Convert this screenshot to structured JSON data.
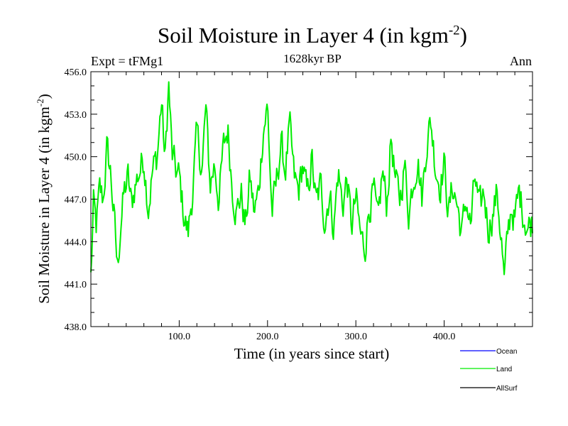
{
  "chart_data": {
    "type": "line",
    "title": "Soil Moisture in Layer 4 (in kgm",
    "title_sup": "-2",
    "title_tail": ")",
    "subtitle": "1628kyr BP",
    "left_label": "Expt = tFMg1",
    "right_label": "Ann",
    "xlabel": "Time (in years since start)",
    "ylabel": "Soil Moisture in Layer 4 (in kgm",
    "ylabel_sup": "-2",
    "ylabel_tail": ")",
    "xlim": [
      0,
      500
    ],
    "ylim": [
      438.0,
      456.0
    ],
    "xticks": [
      100,
      200,
      300,
      400
    ],
    "xtick_labels": [
      "100.0",
      "200.0",
      "300.0",
      "400.0"
    ],
    "yticks": [
      438,
      441,
      444,
      447,
      450,
      453,
      456
    ],
    "ytick_labels": [
      "438.0",
      "441.0",
      "444.0",
      "447.0",
      "450.0",
      "453.0",
      "456.0"
    ],
    "legend": [
      {
        "name": "Ocean",
        "color": "#0000ff"
      },
      {
        "name": "Land",
        "color": "#00ee00"
      },
      {
        "name": "AllSurf",
        "color": "#000000"
      }
    ],
    "series": [
      {
        "name": "Land",
        "color": "#00ee00",
        "keypoints_x": [
          0,
          3,
          6,
          10,
          14,
          18,
          22,
          26,
          30,
          34,
          38,
          42,
          46,
          50,
          55,
          60,
          65,
          70,
          75,
          80,
          84,
          88,
          92,
          96,
          100,
          105,
          110,
          115,
          120,
          126,
          130,
          135,
          140,
          145,
          150,
          155,
          160,
          165,
          170,
          175,
          180,
          185,
          190,
          195,
          200,
          205,
          210,
          215,
          220,
          225,
          230,
          235,
          240,
          245,
          250,
          255,
          260,
          265,
          270,
          275,
          280,
          285,
          290,
          295,
          300,
          305,
          310,
          315,
          320,
          325,
          330,
          335,
          340,
          345,
          350,
          355,
          360,
          365,
          370,
          375,
          380,
          385,
          390,
          395,
          400,
          405,
          410,
          415,
          420,
          425,
          430,
          435,
          440,
          445,
          450,
          455,
          460,
          465,
          468,
          472,
          476,
          480,
          485,
          490,
          495,
          500
        ],
        "keypoints_y": [
          441.5,
          446.5,
          445.0,
          447.5,
          447.0,
          450.5,
          449.0,
          446.0,
          442.0,
          445.5,
          447.5,
          448.5,
          446.5,
          448.0,
          449.0,
          450.0,
          446.5,
          449.0,
          450.0,
          454.0,
          449.5,
          455.2,
          450.0,
          449.0,
          448.5,
          446.0,
          444.5,
          447.5,
          451.5,
          449.0,
          453.5,
          448.0,
          449.5,
          447.0,
          450.5,
          452.0,
          448.0,
          446.0,
          447.5,
          445.0,
          448.5,
          446.0,
          447.5,
          452.0,
          453.5,
          446.0,
          448.0,
          451.0,
          449.0,
          452.0,
          448.5,
          447.5,
          449.5,
          447.0,
          450.0,
          446.5,
          448.0,
          445.5,
          447.5,
          445.0,
          449.0,
          446.5,
          448.5,
          445.0,
          447.0,
          444.5,
          443.5,
          446.5,
          447.5,
          445.0,
          449.0,
          446.5,
          451.5,
          448.0,
          447.0,
          449.5,
          446.0,
          448.5,
          450.0,
          447.0,
          451.0,
          452.5,
          449.5,
          448.0,
          449.5,
          446.0,
          448.0,
          446.5,
          444.5,
          447.0,
          445.0,
          448.5,
          446.0,
          447.5,
          445.0,
          446.0,
          447.5,
          444.0,
          441.0,
          444.5,
          446.5,
          445.5,
          447.5,
          446.0,
          445.0,
          445.5
        ],
        "noise_amplitude": 1.1,
        "num_points": 500
      },
      {
        "name": "Ocean",
        "color": "#0000ff",
        "values": []
      },
      {
        "name": "AllSurf",
        "color": "#000000",
        "values": []
      }
    ]
  }
}
